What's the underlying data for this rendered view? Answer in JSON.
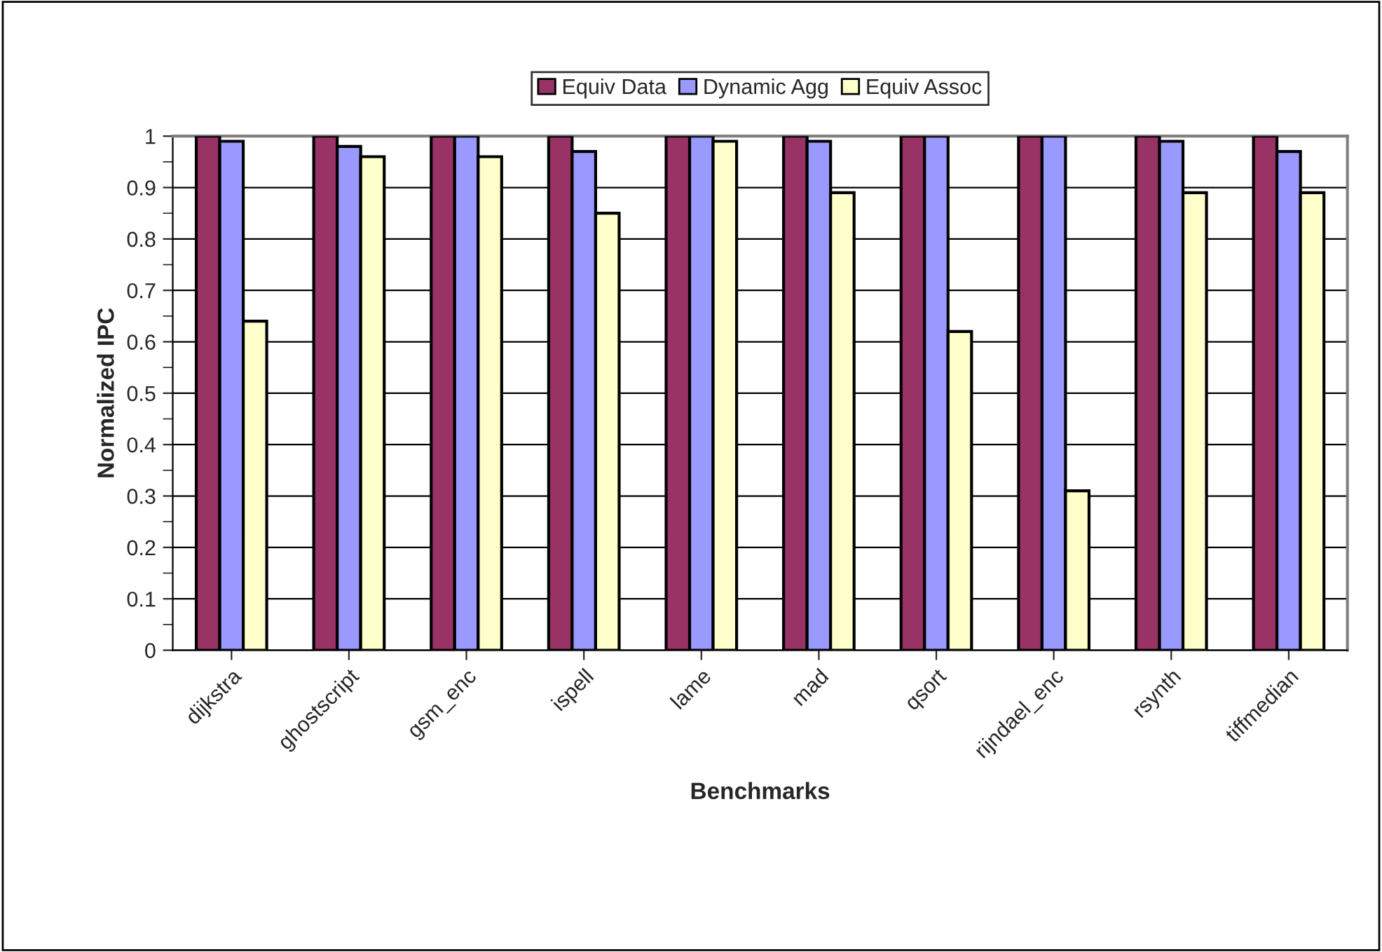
{
  "chart_data": {
    "type": "bar",
    "xlabel": "Benchmarks",
    "ylabel": "Normalized IPC",
    "categories": [
      "dijkstra",
      "ghostscript",
      "gsm_enc",
      "ispell",
      "lame",
      "mad",
      "qsort",
      "rijndael_enc",
      "rsynth",
      "tiffmedian"
    ],
    "series": [
      {
        "name": "Equiv Data",
        "color": "#993366",
        "values": [
          1,
          1,
          1,
          1,
          1,
          1,
          1,
          1,
          1,
          1
        ]
      },
      {
        "name": "Dynamic Agg",
        "color": "#9999ff",
        "values": [
          0.99,
          0.98,
          1,
          0.97,
          1,
          0.99,
          1,
          1,
          0.99,
          0.97
        ]
      },
      {
        "name": "Equiv Assoc",
        "color": "#ffffcc",
        "values": [
          0.64,
          0.96,
          0.96,
          0.85,
          0.99,
          0.89,
          0.62,
          0.31,
          0.89,
          0.89
        ]
      }
    ],
    "ylim": [
      0,
      1
    ],
    "yticks": [
      0,
      0.1,
      0.2,
      0.3,
      0.4,
      0.5,
      0.6,
      0.7,
      0.8,
      0.9,
      1
    ],
    "grid": "y",
    "legend": "top"
  }
}
